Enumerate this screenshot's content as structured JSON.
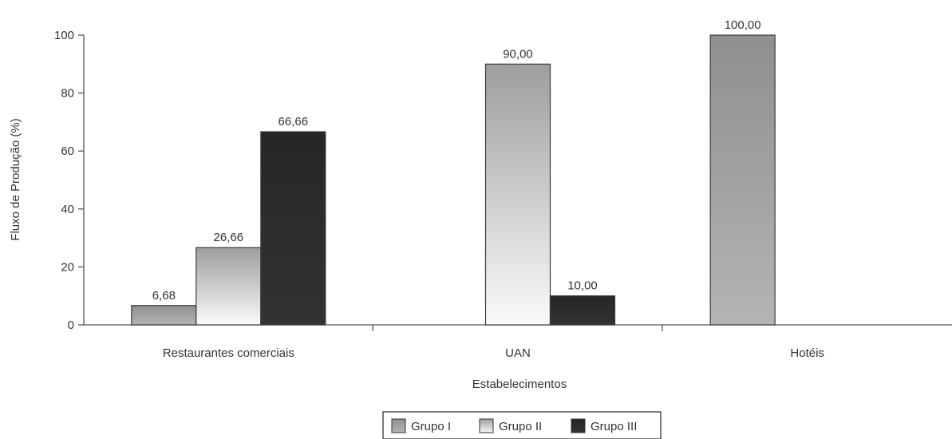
{
  "chart_data": {
    "type": "bar",
    "title": "",
    "xlabel": "Estabelecimentos",
    "ylabel": "Fluxo de Produção (%)",
    "ylim": [
      0,
      100
    ],
    "yticks": [
      "0",
      "20",
      "40",
      "60",
      "80",
      "100"
    ],
    "grid": false,
    "legend_position": "bottom",
    "categories": [
      "Restaurantes comerciais",
      "UAN",
      "Hotéis"
    ],
    "series": [
      {
        "name": "Grupo I",
        "values": [
          6.68,
          0,
          100
        ],
        "labels": [
          "6,68",
          null,
          "100,00"
        ],
        "color": "#9a9a9a"
      },
      {
        "name": "Grupo II",
        "values": [
          26.66,
          90,
          0
        ],
        "labels": [
          "26,66",
          "90,00",
          null
        ],
        "color": "#d9d9d9"
      },
      {
        "name": "Grupo III",
        "values": [
          66.66,
          10,
          0
        ],
        "labels": [
          "66,66",
          "10,00",
          null
        ],
        "color": "#2e2e2e"
      }
    ]
  }
}
